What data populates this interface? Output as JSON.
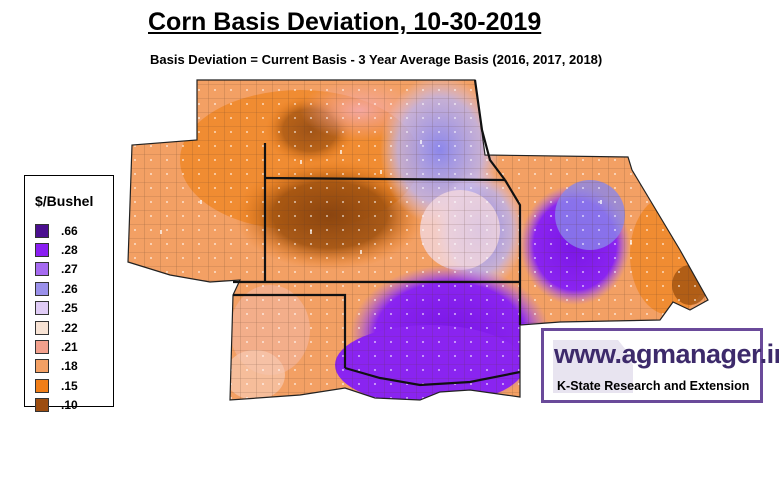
{
  "title": "Corn Basis Deviation, 10-30-2019",
  "subtitle": "Basis Deviation = Current Basis - 3 Year Average Basis (2016, 2017, 2018)",
  "legend": {
    "title": "$/Bushel",
    "items": [
      {
        "label": ".66",
        "color": "#4b0f8f"
      },
      {
        "label": ".28",
        "color": "#8a1ef2"
      },
      {
        "label": ".27",
        "color": "#a56af0"
      },
      {
        "label": ".26",
        "color": "#9a90ea"
      },
      {
        "label": ".25",
        "color": "#e0ccf6"
      },
      {
        "label": ".22",
        "color": "#f8e3d4"
      },
      {
        "label": ".21",
        "color": "#f2a08c"
      },
      {
        "label": ".18",
        "color": "#f3a064"
      },
      {
        "label": ".15",
        "color": "#f07e18"
      },
      {
        "label": ".10",
        "color": "#9c4d10"
      }
    ]
  },
  "logo": {
    "main": "www.agmanager.info",
    "sub": "K-State Research and Extension",
    "color": "#6a4a9a"
  }
}
